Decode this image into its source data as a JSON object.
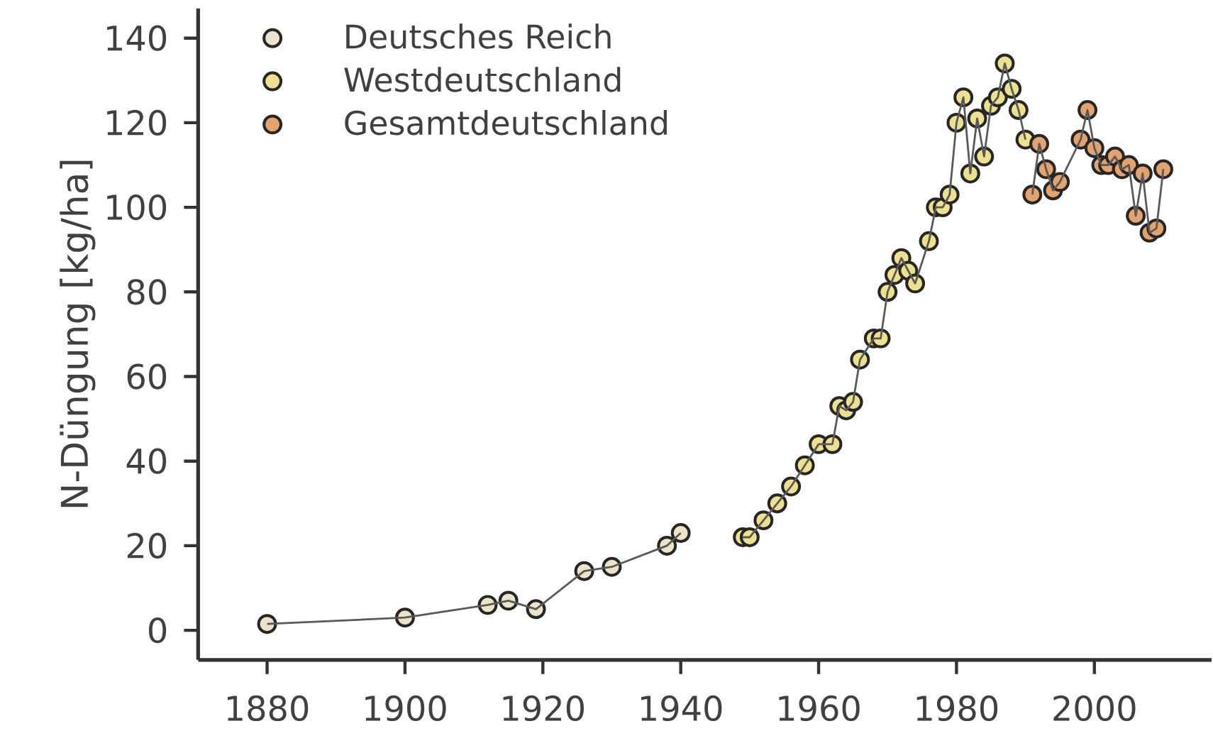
{
  "chart_data": {
    "type": "line",
    "ylabel": "N-Düngung [kg/ha]",
    "xlim": [
      1870,
      2017
    ],
    "ylim": [
      -7,
      147
    ],
    "xticks": [
      1880,
      1900,
      1920,
      1940,
      1960,
      1980,
      2000
    ],
    "yticks": [
      0,
      20,
      40,
      60,
      80,
      100,
      120,
      140
    ],
    "grid": false,
    "legend": "top left",
    "marker": "circle",
    "line_style": "solid",
    "series": [
      {
        "name": "Deutsches Reich",
        "color": "#ede3c8",
        "x": [
          1880,
          1900,
          1912,
          1915,
          1919,
          1926,
          1930,
          1938,
          1940
        ],
        "values": [
          1.5,
          3,
          6,
          7,
          5,
          14,
          15,
          20,
          23
        ]
      },
      {
        "name": "Westdeutschland",
        "color": "#ede08f",
        "x": [
          1949,
          1950,
          1952,
          1954,
          1956,
          1958,
          1960,
          1962,
          1963,
          1964,
          1965,
          1966,
          1968,
          1969,
          1970,
          1971,
          1972,
          1973,
          1974,
          1976,
          1977,
          1978,
          1979,
          1980,
          1981,
          1982,
          1983,
          1984,
          1985,
          1986,
          1987,
          1988,
          1989,
          1990
        ],
        "values": [
          22,
          22,
          26,
          30,
          34,
          39,
          44,
          44,
          53,
          52,
          54,
          64,
          69,
          69,
          80,
          84,
          88,
          85,
          82,
          92,
          100,
          100,
          103,
          120,
          126,
          108,
          121,
          112,
          124,
          126,
          134,
          128,
          123,
          116
        ]
      },
      {
        "name": "Gesamtdeutschland",
        "color": "#e3a36f",
        "x": [
          1991,
          1992,
          1993,
          1994,
          1995,
          1998,
          1999,
          2000,
          2001,
          2002,
          2003,
          2004,
          2005,
          2006,
          2007,
          2008,
          2009,
          2010
        ],
        "values": [
          103,
          115,
          109,
          104,
          106,
          116,
          123,
          114,
          110,
          110,
          112,
          109,
          110,
          98,
          108,
          94,
          95,
          109
        ]
      }
    ]
  }
}
